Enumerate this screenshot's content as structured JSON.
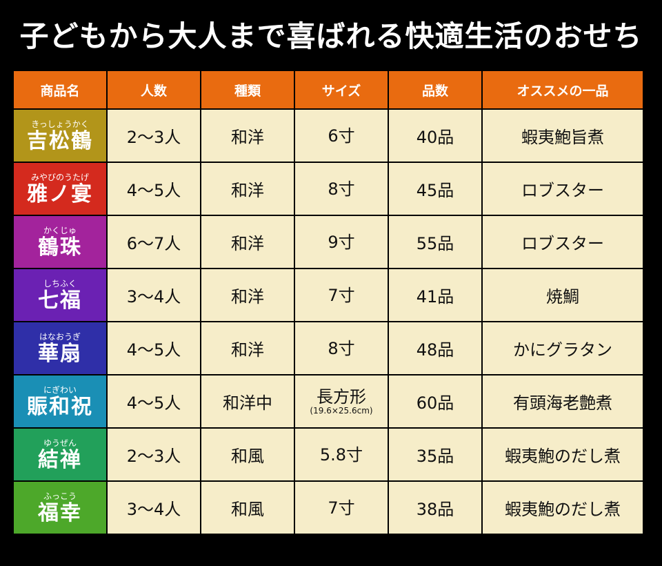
{
  "title": "子どもから大人まで喜ばれる快適生活のおせち",
  "headers": [
    "商品名",
    "人数",
    "種類",
    "サイズ",
    "品数",
    "オススメの一品"
  ],
  "rows": [
    {
      "ruby": "きっしょうかく",
      "name": "吉松鶴",
      "color": "#b2951a",
      "people": "2〜3人",
      "kind": "和洋",
      "size": "6寸",
      "size_note": "",
      "count": "40品",
      "recommend": "蝦夷鮑旨煮"
    },
    {
      "ruby": "みやびのうたげ",
      "name": "雅ノ宴",
      "color": "#d42a1e",
      "people": "4〜5人",
      "kind": "和洋",
      "size": "8寸",
      "size_note": "",
      "count": "45品",
      "recommend": "ロブスター"
    },
    {
      "ruby": "かくじゅ",
      "name": "鶴珠",
      "color": "#a3239c",
      "people": "6〜7人",
      "kind": "和洋",
      "size": "9寸",
      "size_note": "",
      "count": "55品",
      "recommend": "ロブスター"
    },
    {
      "ruby": "しちふく",
      "name": "七福",
      "color": "#6b21b3",
      "people": "3〜4人",
      "kind": "和洋",
      "size": "7寸",
      "size_note": "",
      "count": "41品",
      "recommend": "焼鯛"
    },
    {
      "ruby": "はなおうぎ",
      "name": "華扇",
      "color": "#2f2fa8",
      "people": "4〜5人",
      "kind": "和洋",
      "size": "8寸",
      "size_note": "",
      "count": "48品",
      "recommend": "かにグラタン"
    },
    {
      "ruby": "にぎわい",
      "name": "賑和祝",
      "color": "#1a8fb5",
      "people": "4〜5人",
      "kind": "和洋中",
      "size": "長方形",
      "size_note": "(19.6×25.6cm)",
      "count": "60品",
      "recommend": "有頭海老艶煮"
    },
    {
      "ruby": "ゆうぜん",
      "name": "結禅",
      "color": "#22a05a",
      "people": "2〜3人",
      "kind": "和風",
      "size": "5.8寸",
      "size_note": "",
      "count": "35品",
      "recommend": "蝦夷鮑のだし煮"
    },
    {
      "ruby": "ふっこう",
      "name": "福幸",
      "color": "#4da82a",
      "people": "3〜4人",
      "kind": "和風",
      "size": "7寸",
      "size_note": "",
      "count": "38品",
      "recommend": "蝦夷鮑のだし煮"
    }
  ]
}
